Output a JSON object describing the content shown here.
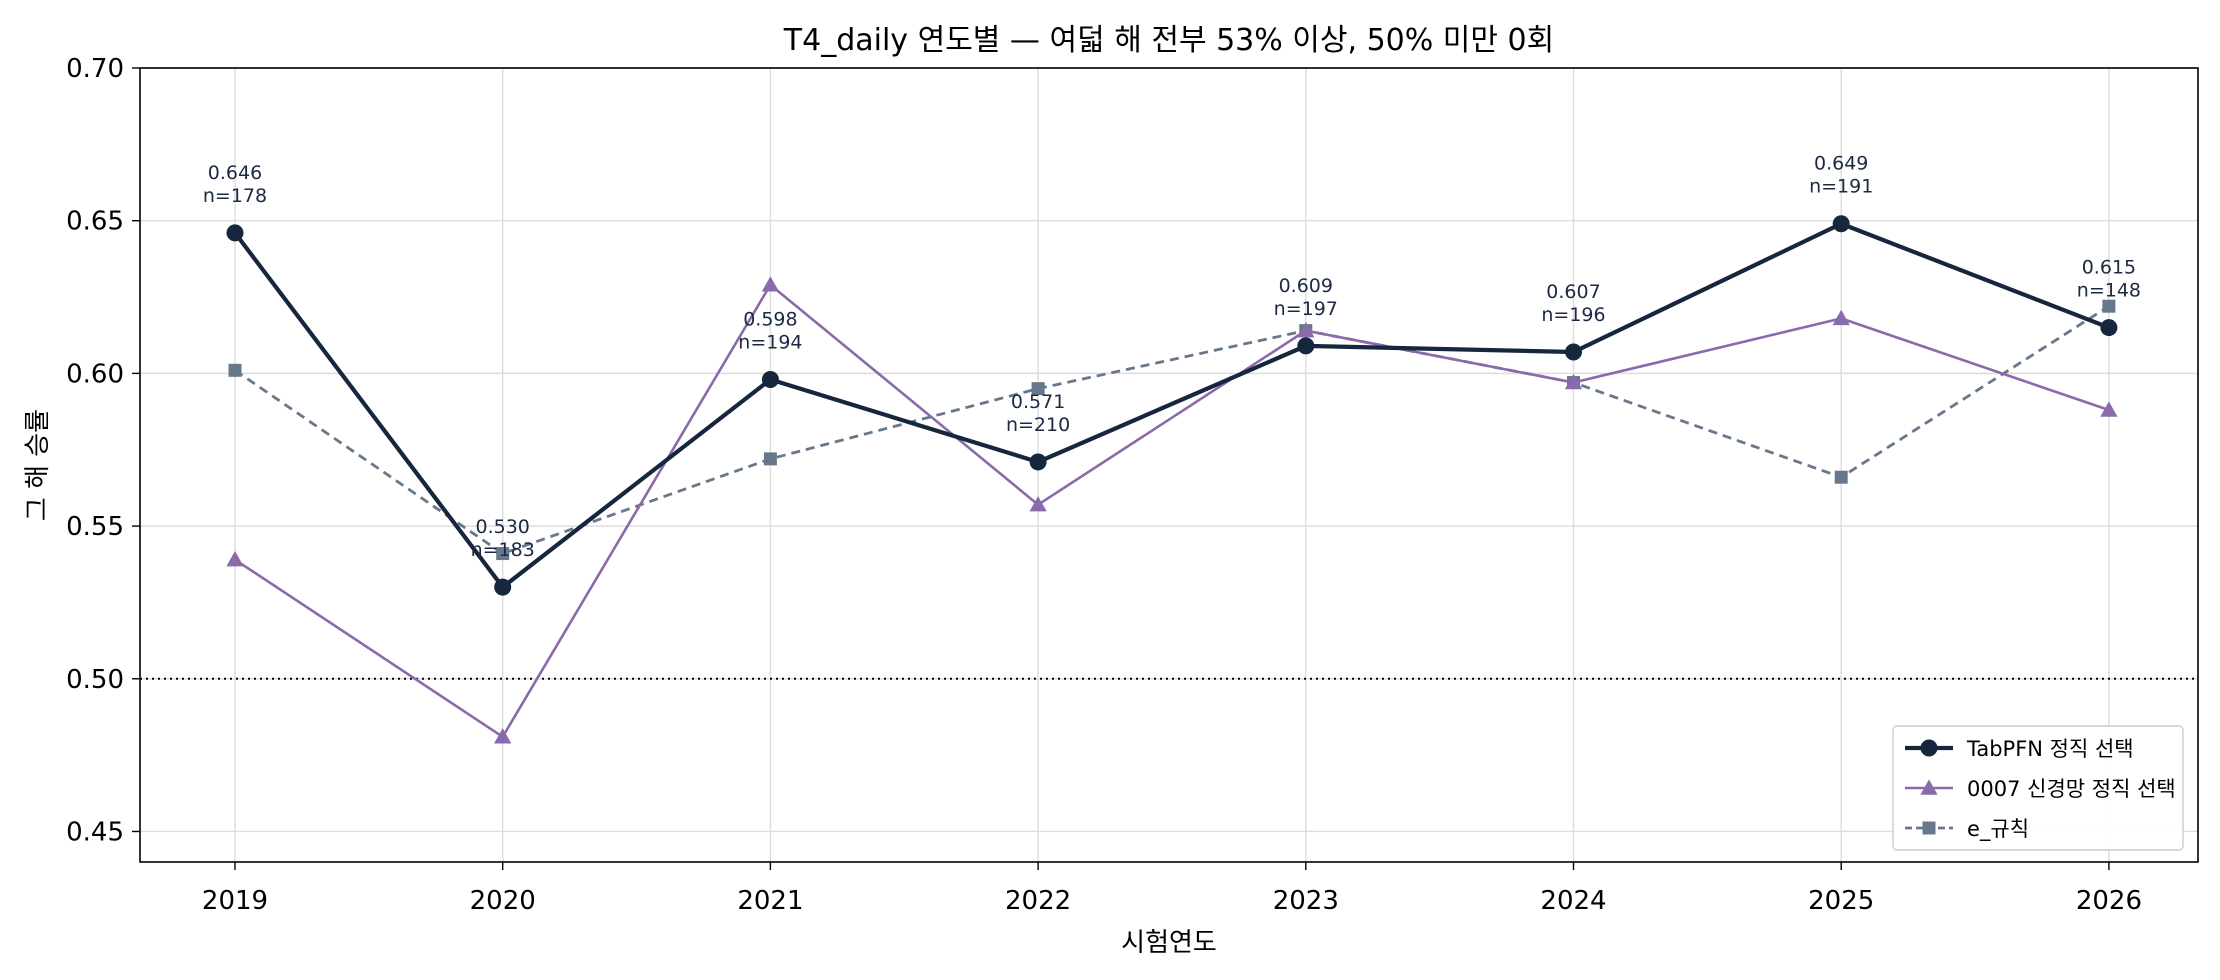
{
  "chart_data": {
    "type": "line",
    "title": "T4_daily 연도별 — 여덟 해 전부 53% 이상, 50% 미만 0회",
    "xlabel": "시험연도",
    "ylabel": "그 해 승률",
    "categories": [
      "2019",
      "2020",
      "2021",
      "2022",
      "2023",
      "2024",
      "2025",
      "2026"
    ],
    "ylim": [
      0.44,
      0.7
    ],
    "yticks": [
      "0.45",
      "0.50",
      "0.55",
      "0.60",
      "0.65",
      "0.70"
    ],
    "grid": true,
    "legend_position": "lower-right",
    "reference_line": 0.5,
    "series": [
      {
        "name": "TabPFN 정직 선택",
        "values": [
          0.646,
          0.53,
          0.598,
          0.571,
          0.609,
          0.607,
          0.649,
          0.615
        ],
        "color": "#16263d",
        "marker": "circle",
        "line_style": "solid"
      },
      {
        "name": "0007 신경망 정직 선택",
        "values": [
          0.539,
          0.481,
          0.629,
          0.557,
          0.614,
          0.597,
          0.618,
          0.588
        ],
        "color": "#8a6aaa",
        "marker": "triangle",
        "line_style": "solid"
      },
      {
        "name": "e_규칙",
        "values": [
          0.601,
          0.541,
          0.572,
          0.595,
          0.614,
          0.597,
          0.566,
          0.622
        ],
        "color": "#67788a",
        "marker": "square",
        "line_style": "dashed"
      }
    ],
    "annotations": [
      {
        "value": "0.646",
        "n": "n=178"
      },
      {
        "value": "0.530",
        "n": "n=183"
      },
      {
        "value": "0.598",
        "n": "n=194"
      },
      {
        "value": "0.571",
        "n": "n=210"
      },
      {
        "value": "0.609",
        "n": "n=197"
      },
      {
        "value": "0.607",
        "n": "n=196"
      },
      {
        "value": "0.649",
        "n": "n=191"
      },
      {
        "value": "0.615",
        "n": "n=148"
      }
    ]
  }
}
